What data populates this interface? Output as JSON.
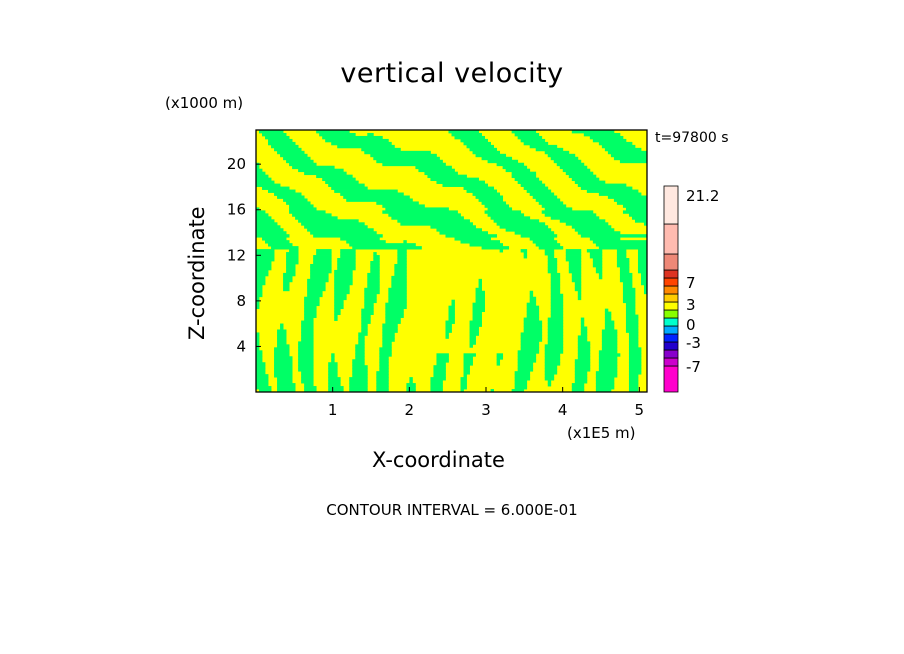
{
  "chart_data": {
    "type": "heatmap",
    "title": "vertical velocity",
    "xlabel": "X-coordinate",
    "ylabel": "Z-coordinate",
    "x_unit": "(x1E5 m)",
    "z_unit": "(x1000 m)",
    "time_label": "t=97800 s",
    "footer": "CONTOUR INTERVAL = 6.000E-01",
    "xlim": [
      0,
      5.1
    ],
    "ylim": [
      0,
      23
    ],
    "x_ticks": [
      1,
      2,
      3,
      4,
      5
    ],
    "y_ticks": [
      4,
      8,
      12,
      16,
      20
    ],
    "colorbar": {
      "labeled_values": [
        "21.2",
        "7",
        "3",
        "0",
        "-3",
        "-7"
      ],
      "colors": [
        "#ff00cc",
        "#cc00cc",
        "#8800cc",
        "#2200cc",
        "#0022ff",
        "#00aaff",
        "#00ffcc",
        "#88ff00",
        "#ffff00",
        "#ffcc00",
        "#ff8800",
        "#ff4400",
        "#dd3322",
        "#ee8877",
        "#ffbbb0",
        "#ffe8e0"
      ]
    },
    "field_colors": {
      "positive": "#ffff00",
      "near_zero": "#00ff66"
    }
  }
}
